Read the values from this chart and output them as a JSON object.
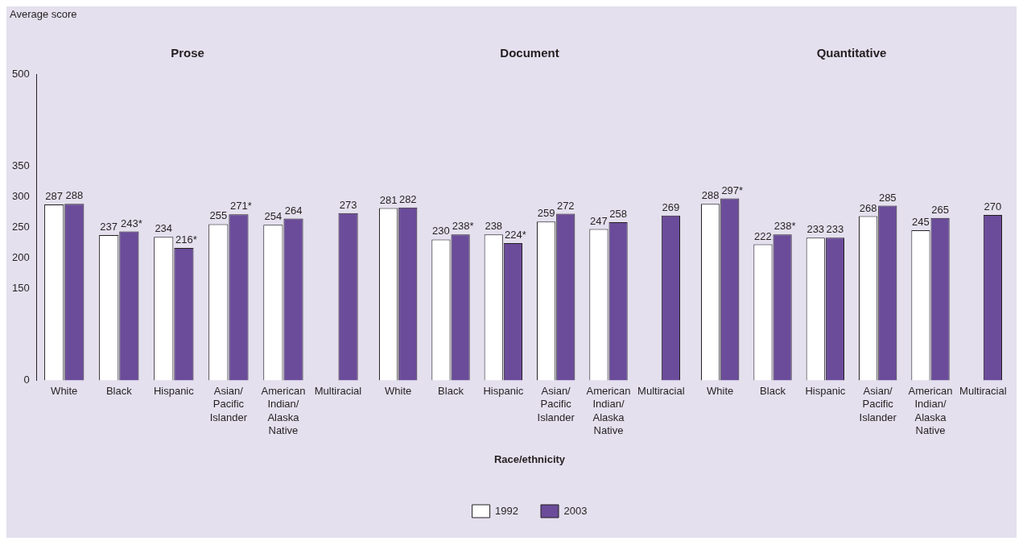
{
  "chart_data": [
    {
      "type": "bar",
      "title": "Prose",
      "ylabel": "Average score",
      "categories": [
        "White",
        "Black",
        "Hispanic",
        "Asian/Pacific Islander",
        "American Indian/Alaska Native",
        "Multiracial"
      ],
      "series": [
        {
          "color": "#ffffff",
          "values": [
            287,
            237,
            234,
            255,
            254,
            null
          ],
          "value_labels": [
            "287",
            "237",
            "234",
            "255",
            "254",
            null
          ]
        },
        {
          "color": "#6b4c9a",
          "values": [
            288,
            243,
            216,
            271,
            264,
            273
          ],
          "value_labels": [
            "288",
            "243*",
            "216*",
            "271*",
            "264",
            "273"
          ]
        }
      ],
      "ylim": [
        0,
        500
      ],
      "yticks": [
        0,
        150,
        200,
        250,
        300,
        350,
        500
      ],
      "grid": false,
      "legend": false
    },
    {
      "type": "bar",
      "title": "Document",
      "xlabel": "Race/ethnicity",
      "categories": [
        "White",
        "Black",
        "Hispanic",
        "Asian/Pacific Islander",
        "American Indian/Alaska Native",
        "Multiracial"
      ],
      "series": [
        {
          "name": "1992",
          "color": "#ffffff",
          "values": [
            281,
            230,
            238,
            259,
            247,
            null
          ],
          "value_labels": [
            "281",
            "230",
            "238",
            "259",
            "247",
            null
          ]
        },
        {
          "name": "2003",
          "color": "#6b4c9a",
          "values": [
            282,
            238,
            224,
            272,
            258,
            269
          ],
          "value_labels": [
            "282",
            "238*",
            "224*",
            "272",
            "258",
            "269"
          ]
        }
      ],
      "ylim": [
        0,
        500
      ],
      "yticks": [
        0,
        150,
        200,
        250,
        300,
        350,
        500
      ],
      "tick_labels": "x",
      "grid": false,
      "legend": "bottom"
    },
    {
      "type": "bar",
      "title": "Quantitative",
      "categories": [
        "White",
        "Black",
        "Hispanic",
        "Asian/Pacific Islander",
        "American Indian/Alaska Native",
        "Multiracial"
      ],
      "series": [
        {
          "color": "#ffffff",
          "values": [
            288,
            222,
            233,
            268,
            245,
            null
          ],
          "value_labels": [
            "288",
            "222",
            "233",
            "268",
            "245",
            null
          ]
        },
        {
          "color": "#6b4c9a",
          "values": [
            297,
            238,
            233,
            285,
            265,
            270
          ],
          "value_labels": [
            "297*",
            "238*",
            "233",
            "285",
            "265",
            "270"
          ]
        }
      ],
      "ylim": [
        0,
        500
      ],
      "yticks": [
        0,
        150,
        200,
        250,
        300,
        350,
        500
      ],
      "tick_labels": "x",
      "grid": false,
      "legend": false
    }
  ]
}
